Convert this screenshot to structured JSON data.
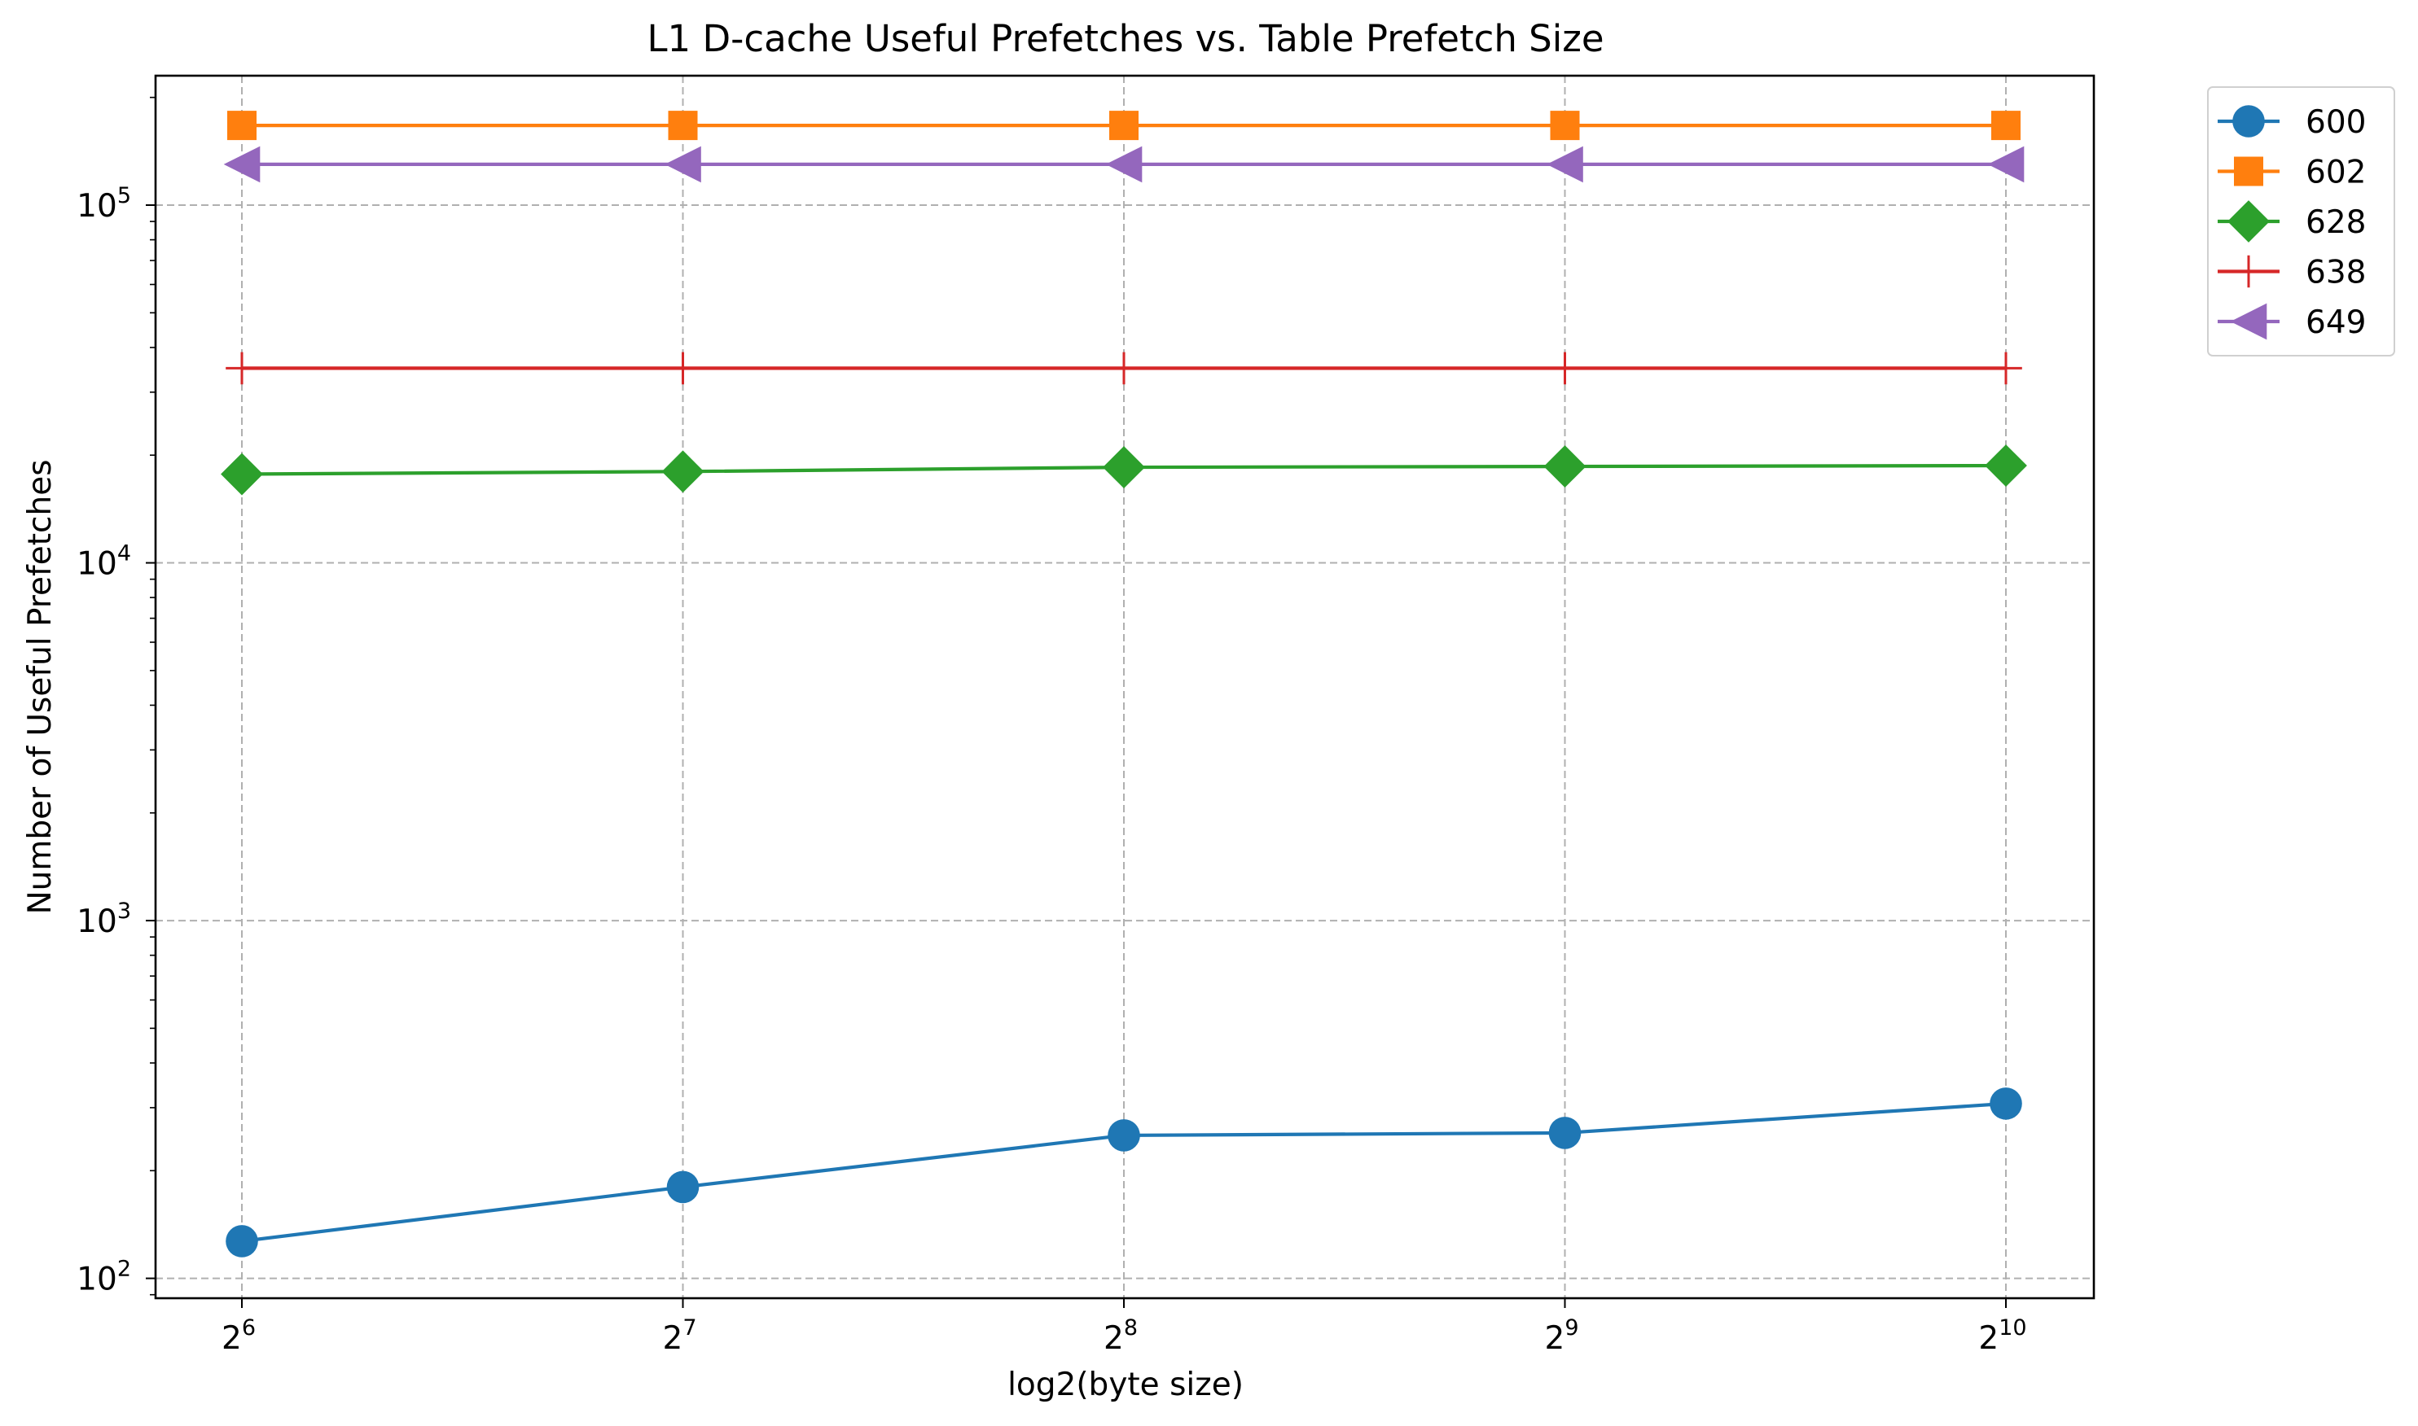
{
  "chart_data": {
    "type": "line",
    "title": "L1 D-cache Useful Prefetches vs. Table Prefetch Size",
    "xlabel": "log2(byte size)",
    "ylabel": "Number of Useful Prefetches",
    "x": [
      64,
      128,
      256,
      512,
      1024
    ],
    "x_scale": "log2",
    "x_tick_labels": [
      {
        "base": "2",
        "exp": "6"
      },
      {
        "base": "2",
        "exp": "7"
      },
      {
        "base": "2",
        "exp": "8"
      },
      {
        "base": "2",
        "exp": "9"
      },
      {
        "base": "2",
        "exp": "10"
      }
    ],
    "y_scale": "log10",
    "ylim": [
      88,
      230000
    ],
    "y_tick_labels": [
      {
        "base": "10",
        "exp": "2"
      },
      {
        "base": "10",
        "exp": "3"
      },
      {
        "base": "10",
        "exp": "4"
      },
      {
        "base": "10",
        "exp": "5"
      }
    ],
    "grid": true,
    "legend_position": "outside top-right",
    "series": [
      {
        "name": "600",
        "color": "#1f77b4",
        "marker": "circle",
        "values": [
          127,
          180,
          251,
          255,
          308
        ]
      },
      {
        "name": "602",
        "color": "#ff7f0e",
        "marker": "square",
        "values": [
          167000,
          167000,
          167000,
          167000,
          167000
        ]
      },
      {
        "name": "628",
        "color": "#2ca02c",
        "marker": "diamond",
        "values": [
          17700,
          18000,
          18500,
          18600,
          18700
        ]
      },
      {
        "name": "638",
        "color": "#d62728",
        "marker": "plus",
        "values": [
          35000,
          35000,
          35000,
          35000,
          35000
        ]
      },
      {
        "name": "649",
        "color": "#9467bd",
        "marker": "triangle-left",
        "values": [
          130000,
          130000,
          130000,
          130000,
          130000
        ]
      }
    ]
  }
}
